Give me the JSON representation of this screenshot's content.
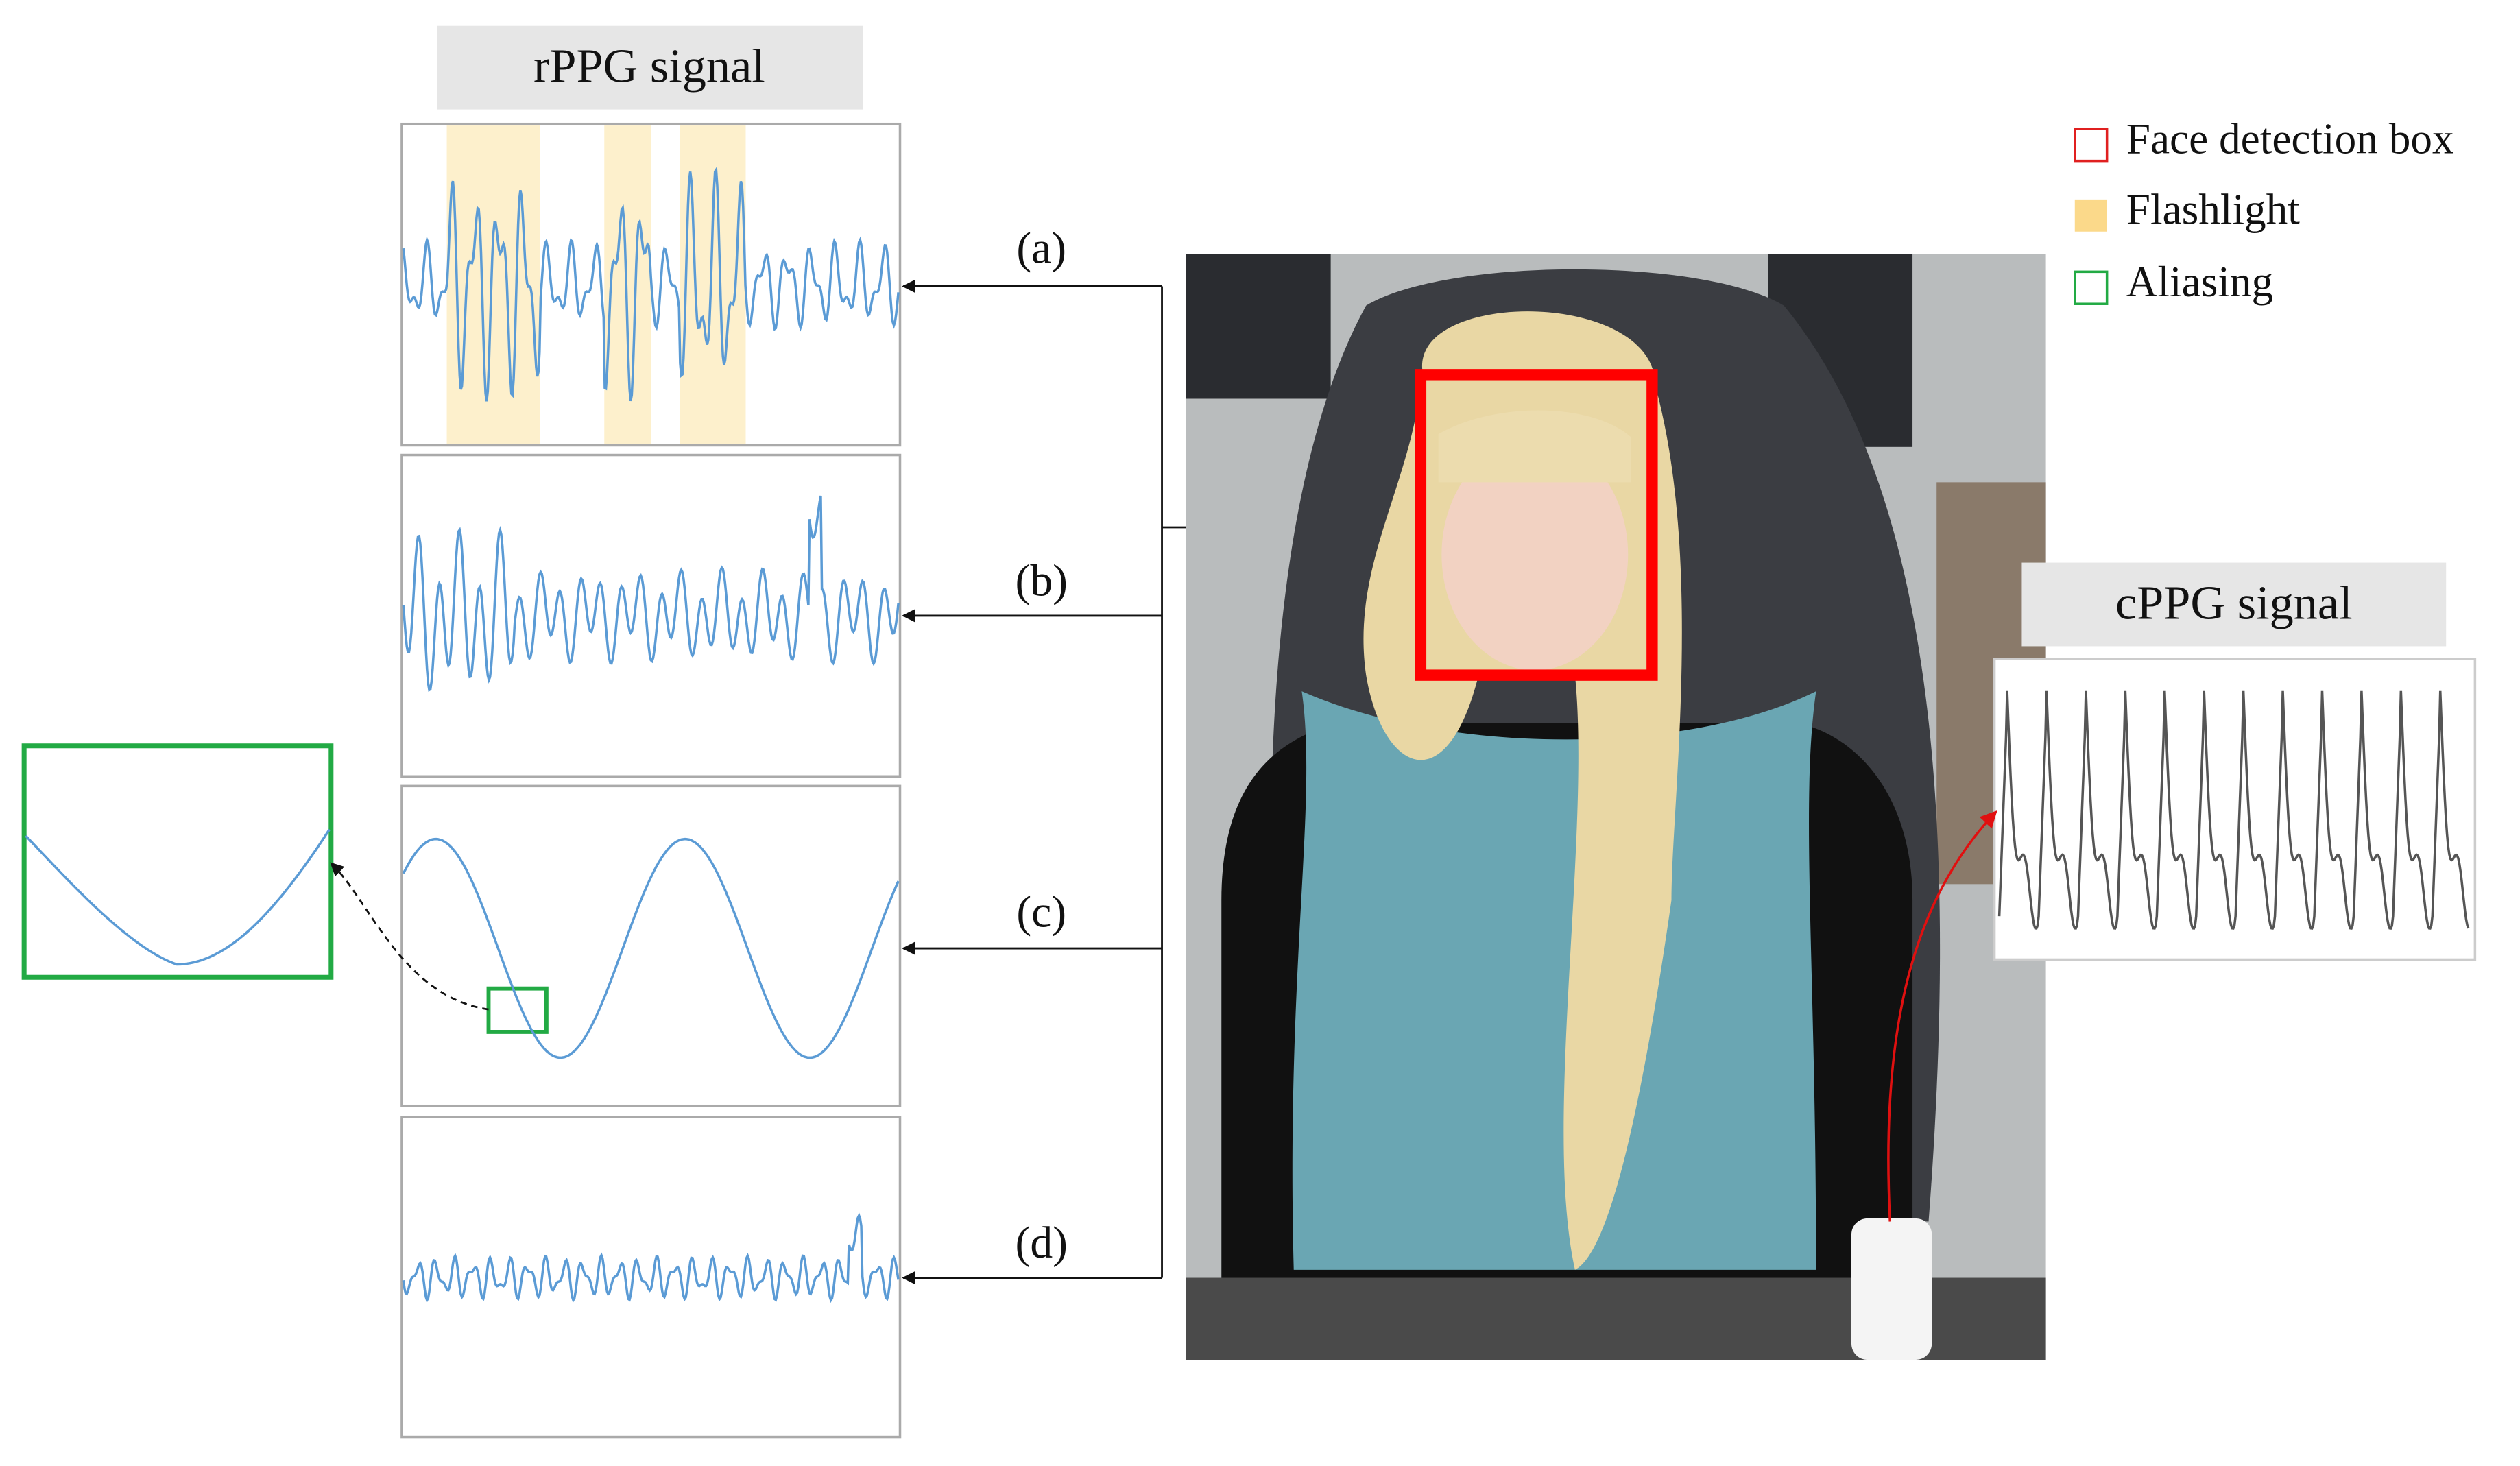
{
  "header": {
    "title": "rPPG signal"
  },
  "panels": [
    "(a)",
    "(b)",
    "(c)",
    "(d)"
  ],
  "reference": {
    "title": "cPPG signal"
  },
  "legend": [
    "Face detection box",
    "Flashlight",
    "Aliasing"
  ]
}
